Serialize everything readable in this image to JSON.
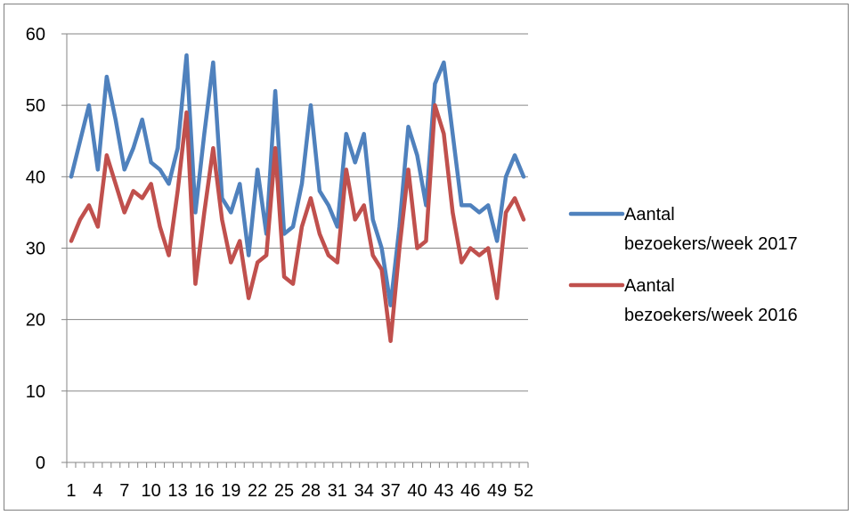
{
  "chart_data": {
    "type": "line",
    "x": [
      1,
      2,
      3,
      4,
      5,
      6,
      7,
      8,
      9,
      10,
      11,
      12,
      13,
      14,
      15,
      16,
      17,
      18,
      19,
      20,
      21,
      22,
      23,
      24,
      25,
      26,
      27,
      28,
      29,
      30,
      31,
      32,
      33,
      34,
      35,
      36,
      37,
      38,
      39,
      40,
      41,
      42,
      43,
      44,
      45,
      46,
      47,
      48,
      49,
      50,
      51,
      52
    ],
    "x_tick_labels": [
      "1",
      "4",
      "7",
      "10",
      "13",
      "16",
      "19",
      "22",
      "25",
      "28",
      "31",
      "34",
      "37",
      "40",
      "43",
      "46",
      "49",
      "52"
    ],
    "ylim": [
      0,
      60
    ],
    "y_ticks": [
      0,
      10,
      20,
      30,
      40,
      50,
      60
    ],
    "y_tick_labels": [
      "0",
      "10",
      "20",
      "30",
      "40",
      "50",
      "60"
    ],
    "grid": true,
    "legend_position": "right",
    "series": [
      {
        "name": "Aantal bezoekers/week 2017",
        "legend_line1": "Aantal",
        "legend_line2": "bezoekers/week 2017",
        "color": "#4F81BD",
        "values": [
          40,
          45,
          50,
          41,
          54,
          48,
          41,
          44,
          48,
          42,
          41,
          39,
          44,
          57,
          35,
          46,
          56,
          37,
          35,
          39,
          29,
          41,
          32,
          52,
          32,
          33,
          39,
          50,
          38,
          36,
          33,
          46,
          42,
          46,
          34,
          30,
          22,
          33,
          47,
          43,
          36,
          53,
          56,
          46,
          36,
          36,
          35,
          36,
          31,
          40,
          43,
          40
        ]
      },
      {
        "name": "Aantal bezoekers/week 2016",
        "legend_line1": "Aantal",
        "legend_line2": "bezoekers/week 2016",
        "color": "#C0504D",
        "values": [
          31,
          34,
          36,
          33,
          43,
          39,
          35,
          38,
          37,
          39,
          33,
          29,
          38,
          49,
          25,
          35,
          44,
          34,
          28,
          31,
          23,
          28,
          29,
          44,
          26,
          25,
          33,
          37,
          32,
          29,
          28,
          41,
          34,
          36,
          29,
          27,
          17,
          30,
          41,
          30,
          31,
          50,
          46,
          35,
          28,
          30,
          29,
          30,
          23,
          35,
          37,
          34
        ]
      }
    ]
  }
}
